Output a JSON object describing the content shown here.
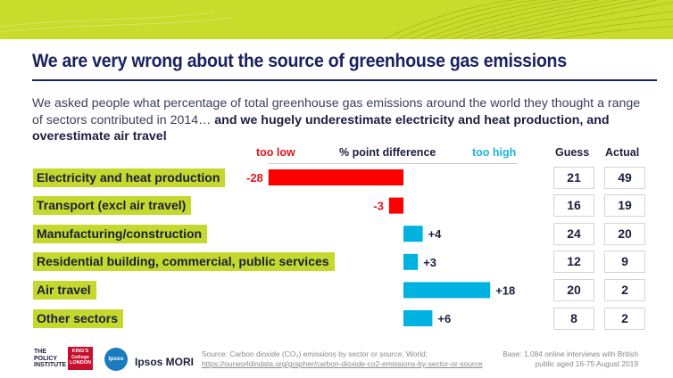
{
  "title": "We are very wrong about the source of greenhouse gas emissions",
  "subtitle": {
    "normal": "We asked people what percentage of total greenhouse gas emissions around the world they thought a range of sectors contributed in 2014… ",
    "bold": "and we hugely underestimate electricity and heat production, and overestimate air travel"
  },
  "headers": {
    "too_low": "too low",
    "diff": "% point difference",
    "too_high": "too high",
    "guess": "Guess",
    "actual": "Actual"
  },
  "chart_data": {
    "type": "bar",
    "orientation": "horizontal",
    "categories": [
      "Electricity and heat production",
      "Transport (excl air travel)",
      "Manufacturing/construction",
      "Residential building, commercial, public services",
      "Air travel",
      "Other sectors"
    ],
    "values": [
      -28,
      -3,
      4,
      3,
      18,
      6
    ],
    "value_labels": [
      "-28",
      "-3",
      "+4",
      "+3",
      "+18",
      "+6"
    ],
    "guess": [
      "21",
      "16",
      "24",
      "12",
      "20",
      "8"
    ],
    "actual": [
      "49",
      "19",
      "20",
      "9",
      "2",
      "2"
    ],
    "negative_color": "#ff0000",
    "positive_color": "#00b2e0"
  },
  "colors": {
    "label_bg": "#c4d82e",
    "title": "#1c2260",
    "too_low": "#e3151a",
    "too_high": "#1db3e0"
  },
  "logos": {
    "policy_institute": "THE POLICY INSTITUTE",
    "kings": "KING'S College LONDON",
    "ipsos": "Ipsos",
    "ipsos_mori": "Ipsos MORI"
  },
  "source": {
    "line1": "Source: Carbon dioxide (CO₂) emissions by sector or source, World:",
    "line2": "https://ourworldindata.org/grapher/carbon-dioxide-co2-emissions-by-sector-or-source"
  },
  "base": "Base: 1,084 online interviews with British public aged 16-75 August 2019"
}
